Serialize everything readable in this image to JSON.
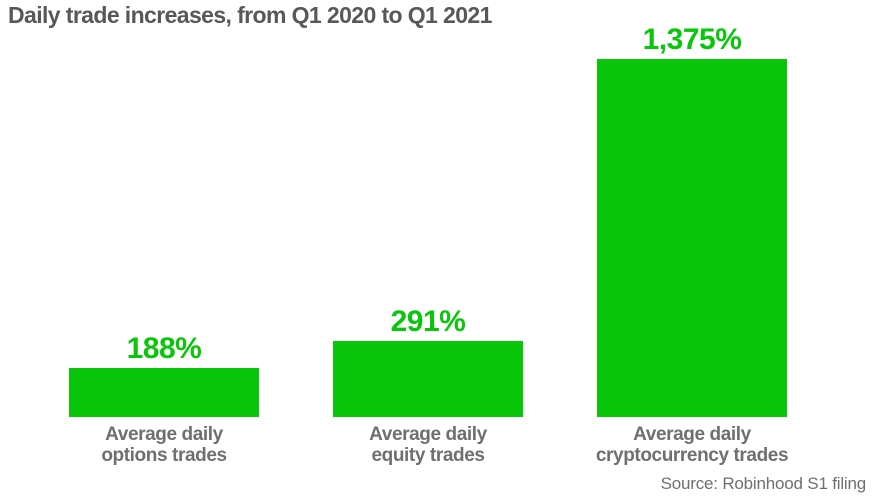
{
  "chart_data": {
    "type": "bar",
    "title": "Daily trade increases, from Q1 2020 to Q1 2021",
    "source": "Source: Robinhood S1 filing",
    "categories": [
      "Average daily options trades",
      "Average daily equity trades",
      "Average daily cryptocurrency trades"
    ],
    "category_lines": [
      [
        "Average daily",
        "options trades"
      ],
      [
        "Average daily",
        "equity trades"
      ],
      [
        "Average daily",
        "cryptocurrency trades"
      ]
    ],
    "values": [
      188,
      291,
      1375
    ],
    "value_labels": [
      "188%",
      "291%",
      "1,375%"
    ],
    "unit": "%",
    "xlabel": "",
    "ylabel": "",
    "ylim": [
      0,
      1400
    ],
    "grid": false,
    "legend": "none",
    "colors": {
      "bar": "#0AC60A",
      "value_label": "#0AC60A",
      "title": "#57585A",
      "category_label": "#6E6F71",
      "source": "#6E6F71"
    }
  }
}
